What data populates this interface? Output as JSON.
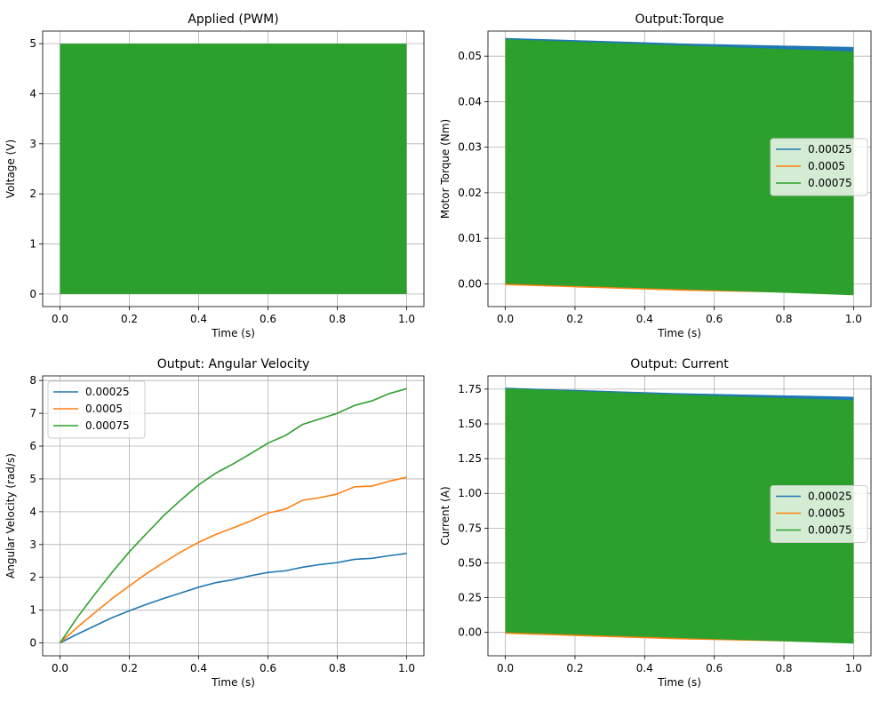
{
  "chart_data": [
    {
      "type": "area",
      "title": "Applied (PWM)",
      "xlabel": "Time (s)",
      "ylabel": "Voltage (V)",
      "xlim": [
        -0.05,
        1.05
      ],
      "ylim": [
        -0.25,
        5.25
      ],
      "xticks": [
        0.0,
        0.2,
        0.4,
        0.6,
        0.8,
        1.0
      ],
      "xtick_labels": [
        "0.0",
        "0.2",
        "0.4",
        "0.6",
        "0.8",
        "1.0"
      ],
      "yticks": [
        0,
        1,
        2,
        3,
        4,
        5
      ],
      "ytick_labels": [
        "0",
        "1",
        "2",
        "3",
        "4",
        "5"
      ],
      "grid": true,
      "legend": null,
      "series": [
        {
          "color": "#2ca02c",
          "x": [
            0,
            1
          ],
          "y_low": [
            0,
            0
          ],
          "y_high": [
            5,
            5
          ]
        }
      ]
    },
    {
      "type": "area",
      "title": "Output:Torque",
      "xlabel": "Time (s)",
      "ylabel": "Motor Torque (Nm)",
      "xlim": [
        -0.05,
        1.05
      ],
      "ylim": [
        -0.005,
        0.0555
      ],
      "xticks": [
        0.0,
        0.2,
        0.4,
        0.6,
        0.8,
        1.0
      ],
      "xtick_labels": [
        "0.0",
        "0.2",
        "0.4",
        "0.6",
        "0.8",
        "1.0"
      ],
      "yticks": [
        0.0,
        0.01,
        0.02,
        0.03,
        0.04,
        0.05
      ],
      "ytick_labels": [
        "0.00",
        "0.01",
        "0.02",
        "0.03",
        "0.04",
        "0.05"
      ],
      "grid": true,
      "legend": "center-right",
      "series": [
        {
          "name": "0.00025",
          "color": "#1f77b4",
          "x": [
            0,
            0.5,
            1
          ],
          "y_low": [
            0.0,
            -0.0008,
            -0.0015
          ],
          "y_high": [
            0.054,
            0.0528,
            0.052
          ]
        },
        {
          "name": "0.0005",
          "color": "#ff7f0e",
          "x": [
            0,
            0.5,
            1
          ],
          "y_low": [
            -0.0003,
            -0.0015,
            -0.0022
          ],
          "y_high": [
            0.0535,
            0.052,
            0.0508
          ]
        },
        {
          "name": "0.00075",
          "color": "#2ca02c",
          "x": [
            0,
            0.5,
            1
          ],
          "y_low": [
            0.0,
            -0.0012,
            -0.0025
          ],
          "y_high": [
            0.0537,
            0.0524,
            0.051
          ]
        }
      ]
    },
    {
      "type": "line",
      "title": "Output: Angular Velocity",
      "xlabel": "Time (s)",
      "ylabel": "Angular Velocity (rad/s)",
      "xlim": [
        -0.05,
        1.05
      ],
      "ylim": [
        -0.39,
        8.14
      ],
      "xticks": [
        0.0,
        0.2,
        0.4,
        0.6,
        0.8,
        1.0
      ],
      "xtick_labels": [
        "0.0",
        "0.2",
        "0.4",
        "0.6",
        "0.8",
        "1.0"
      ],
      "yticks": [
        0,
        1,
        2,
        3,
        4,
        5,
        6,
        7,
        8
      ],
      "ytick_labels": [
        "0",
        "1",
        "2",
        "3",
        "4",
        "5",
        "6",
        "7",
        "8"
      ],
      "grid": true,
      "legend": "upper-left",
      "x": [
        0,
        0.05,
        0.1,
        0.15,
        0.2,
        0.25,
        0.3,
        0.35,
        0.4,
        0.45,
        0.5,
        0.55,
        0.6,
        0.65,
        0.7,
        0.75,
        0.8,
        0.85,
        0.9,
        0.95,
        1.0
      ],
      "series": [
        {
          "name": "0.00025",
          "color": "#1f77b4",
          "values": [
            0,
            0.27,
            0.52,
            0.77,
            0.98,
            1.18,
            1.36,
            1.53,
            1.7,
            1.84,
            1.93,
            2.05,
            2.15,
            2.2,
            2.31,
            2.39,
            2.45,
            2.55,
            2.58,
            2.66,
            2.73
          ]
        },
        {
          "name": "0.0005",
          "color": "#ff7f0e",
          "values": [
            0,
            0.48,
            0.92,
            1.35,
            1.74,
            2.12,
            2.46,
            2.78,
            3.07,
            3.31,
            3.51,
            3.72,
            3.96,
            4.08,
            4.35,
            4.43,
            4.54,
            4.76,
            4.78,
            4.93,
            5.05
          ]
        },
        {
          "name": "0.00075",
          "color": "#2ca02c",
          "values": [
            0,
            0.78,
            1.48,
            2.15,
            2.78,
            3.34,
            3.89,
            4.37,
            4.82,
            5.18,
            5.46,
            5.77,
            6.09,
            6.32,
            6.66,
            6.83,
            7.0,
            7.24,
            7.38,
            7.6,
            7.75
          ]
        }
      ]
    },
    {
      "type": "area",
      "title": "Output: Current",
      "xlabel": "Time (s)",
      "ylabel": "Current (A)",
      "xlim": [
        -0.05,
        1.05
      ],
      "ylim": [
        -0.168,
        1.845
      ],
      "xticks": [
        0.0,
        0.2,
        0.4,
        0.6,
        0.8,
        1.0
      ],
      "xtick_labels": [
        "0.0",
        "0.2",
        "0.4",
        "0.6",
        "0.8",
        "1.0"
      ],
      "yticks": [
        0.0,
        0.25,
        0.5,
        0.75,
        1.0,
        1.25,
        1.5,
        1.75
      ],
      "ytick_labels": [
        "0.00",
        "0.25",
        "0.50",
        "0.75",
        "1.00",
        "1.25",
        "1.50",
        "1.75"
      ],
      "grid": true,
      "legend": "center-right",
      "series": [
        {
          "name": "0.00025",
          "color": "#1f77b4",
          "x": [
            0,
            0.5,
            1
          ],
          "y_low": [
            0.0,
            -0.03,
            -0.05
          ],
          "y_high": [
            1.76,
            1.72,
            1.695
          ]
        },
        {
          "name": "0.0005",
          "color": "#ff7f0e",
          "x": [
            0,
            0.5,
            1
          ],
          "y_low": [
            -0.01,
            -0.05,
            -0.075
          ],
          "y_high": [
            1.745,
            1.7,
            1.66
          ]
        },
        {
          "name": "0.00075",
          "color": "#2ca02c",
          "x": [
            0,
            0.5,
            1
          ],
          "y_low": [
            0.0,
            -0.04,
            -0.08
          ],
          "y_high": [
            1.755,
            1.71,
            1.67
          ]
        }
      ]
    }
  ]
}
